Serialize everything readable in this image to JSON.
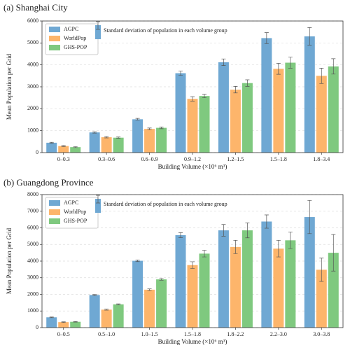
{
  "chart_data": [
    {
      "type": "bar",
      "title": "(a) Shanghai City",
      "x_label": "Building Volume (×10⁶ m³)",
      "y_label": "Mean Population per Grid",
      "annotation": "Standard deviation of population in each volume group",
      "categories": [
        "0–0.3",
        "0.3–0.6",
        "0.6–0.9",
        "0.9–1.2",
        "1.2–1.5",
        "1.5–1.8",
        "1.8–3.4"
      ],
      "series": [
        {
          "name": "AGPC",
          "color": "#6fa8d3",
          "values": [
            450,
            920,
            1520,
            3620,
            4120,
            5220,
            5300
          ],
          "errors": [
            20,
            30,
            40,
            100,
            150,
            250,
            400
          ]
        },
        {
          "name": "WorldPop",
          "color": "#fdb56b",
          "values": [
            300,
            700,
            1080,
            2450,
            2870,
            3820,
            3500
          ],
          "errors": [
            20,
            30,
            40,
            100,
            150,
            250,
            350
          ]
        },
        {
          "name": "GHS-POP",
          "color": "#7fc97f",
          "values": [
            250,
            680,
            1130,
            2580,
            3170,
            4100,
            3930
          ],
          "errors": [
            20,
            30,
            40,
            80,
            150,
            250,
            350
          ]
        }
      ],
      "ylim": [
        0,
        6000
      ],
      "yticks": [
        0,
        1000,
        2000,
        3000,
        4000,
        5000,
        6000
      ],
      "grid": true
    },
    {
      "type": "bar",
      "title": "(b) Guangdong Province",
      "x_label": "Building Volume (×10⁶ m³)",
      "y_label": "Mean Population per Grid",
      "annotation": "Standard deviation of population in each volume group",
      "categories": [
        "0–0.5",
        "0.5–1.0",
        "1.0–1.5",
        "1.5–1.8",
        "1.8–2.2",
        "2.2–3.0",
        "3.0–3.8"
      ],
      "series": [
        {
          "name": "AGPC",
          "color": "#6fa8d3",
          "values": [
            620,
            1960,
            4020,
            5560,
            5850,
            6380,
            6650
          ],
          "errors": [
            20,
            30,
            50,
            150,
            350,
            400,
            1000
          ]
        },
        {
          "name": "WorldPop",
          "color": "#fdb56b",
          "values": [
            330,
            1080,
            2280,
            3760,
            4850,
            4750,
            3480
          ],
          "errors": [
            20,
            30,
            50,
            200,
            400,
            500,
            700
          ]
        },
        {
          "name": "GHS-POP",
          "color": "#7fc97f",
          "values": [
            350,
            1400,
            2900,
            4450,
            5850,
            5250,
            4500
          ],
          "errors": [
            20,
            30,
            50,
            200,
            450,
            500,
            1100
          ]
        }
      ],
      "ylim": [
        0,
        8000
      ],
      "yticks": [
        0,
        1000,
        2000,
        3000,
        4000,
        5000,
        6000,
        7000,
        8000
      ],
      "grid": true
    }
  ]
}
